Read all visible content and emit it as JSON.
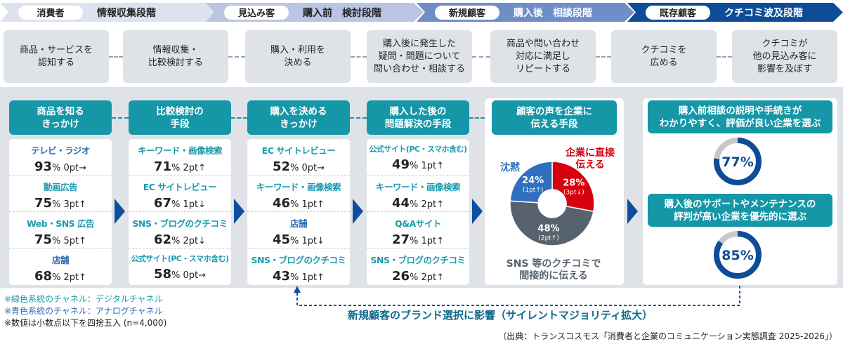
{
  "stages": [
    {
      "pill": "消費者",
      "title": "情報収集段階",
      "bg": "#dde2f0",
      "color": "#222"
    },
    {
      "pill": "見込み客",
      "title": "購入前　検討段階",
      "bg": "#b9c5e2",
      "color": "#222"
    },
    {
      "pill": "新規顧客",
      "title": "購入後　相談段階",
      "bg": "#6f8ec7",
      "color": "#fff"
    },
    {
      "pill": "既存顧客",
      "title": "クチコミ波及段階",
      "bg": "#0f4c97",
      "color": "#fff"
    }
  ],
  "steps": [
    "商品・サービスを\n認知する",
    "情報収集・\n比較検討する",
    "購入・利用を\n決める",
    "購入後に発生した\n疑問・問題について\n問い合わせ・相談する",
    "商品や問い合わせ\n対応に満足し\nリピートする",
    "クチコミを\n広める",
    "クチコミが\n他の見込み客に\n影響を及ぼす"
  ],
  "colors": {
    "digital": "#1a9aae",
    "analog": "#2a6ab8",
    "header": "#1597a8",
    "arrow": "#0c4f9e",
    "red": "#d7000f",
    "gray": "#56636e",
    "blue": "#2f6fbd",
    "ring": "#0f4c97",
    "ring_bg": "#c8c8c8"
  },
  "columns": [
    {
      "header": "商品を知る\nきっかけ",
      "items": [
        {
          "label": "テレビ・ラジオ",
          "channel": "analog",
          "value": "93",
          "unit": "%",
          "change": "0pt→"
        },
        {
          "label": "動画広告",
          "channel": "digital",
          "value": "75",
          "unit": "%",
          "change": "3pt↑"
        },
        {
          "label": "Web・SNS 広告",
          "channel": "digital",
          "value": "75",
          "unit": "%",
          "change": "5pt↑"
        },
        {
          "label": "店舗",
          "channel": "analog",
          "value": "68",
          "unit": "%",
          "change": "2pt↑"
        }
      ]
    },
    {
      "header": "比較検討の\n手段",
      "items": [
        {
          "label": "キーワード・画像検索",
          "channel": "digital",
          "value": "71",
          "unit": "%",
          "change": "2pt↑"
        },
        {
          "label": "EC サイトレビュー",
          "channel": "digital",
          "value": "67",
          "unit": "%",
          "change": "1pt↓"
        },
        {
          "label": "SNS・ブログのクチコミ",
          "channel": "digital",
          "value": "62",
          "unit": "%",
          "change": "2pt↓"
        },
        {
          "label": "公式サイト(PC・スマホ含む)",
          "channel": "digital",
          "value": "58",
          "unit": "%",
          "change": "0pt→"
        }
      ]
    },
    {
      "header": "購入を決める\nきっかけ",
      "items": [
        {
          "label": "EC サイトレビュー",
          "channel": "digital",
          "value": "52",
          "unit": "%",
          "change": "0pt→"
        },
        {
          "label": "キーワード・画像検索",
          "channel": "digital",
          "value": "46",
          "unit": "%",
          "change": "1pt↑"
        },
        {
          "label": "店舗",
          "channel": "analog",
          "value": "45",
          "unit": "%",
          "change": "1pt↓"
        },
        {
          "label": "SNS・ブログのクチコミ",
          "channel": "digital",
          "value": "43",
          "unit": "%",
          "change": "1pt↑"
        }
      ]
    },
    {
      "header": "購入した後の\n問題解決の手段",
      "items": [
        {
          "label": "公式サイト(PC・スマホ含む)",
          "channel": "digital",
          "value": "49",
          "unit": "%",
          "change": "1pt↑"
        },
        {
          "label": "キーワード・画像検索",
          "channel": "digital",
          "value": "44",
          "unit": "%",
          "change": "2pt↑"
        },
        {
          "label": "Q&Aサイト",
          "channel": "digital",
          "value": "27",
          "unit": "%",
          "change": "1pt↑"
        },
        {
          "label": "SNS・ブログのクチコミ",
          "channel": "digital",
          "value": "26",
          "unit": "%",
          "change": "2pt↑"
        }
      ]
    }
  ],
  "voice": {
    "header": "顧客の声を企業に\n伝える手段",
    "slices": [
      {
        "label": "企業に直接\n伝える",
        "value": 28,
        "text": "28%",
        "change": "(3pt↓)",
        "color": "#d7000f"
      },
      {
        "label": "SNS 等のクチコミで\n間接的に伝える",
        "value": 48,
        "text": "48%",
        "change": "(2pt↑)",
        "color": "#56636e"
      },
      {
        "label": "沈黙",
        "value": 24,
        "text": "24%",
        "change": "(1pt↑)",
        "color": "#2f6fbd"
      }
    ]
  },
  "selection": [
    {
      "header": "購入前相談の説明や手続きが\nわかりやすく、評価が良い企業を選ぶ",
      "value": 77,
      "text": "77%"
    },
    {
      "header": "購入後のサポートやメンテナンスの\n評判が高い企業を優先的に選ぶ",
      "value": 85,
      "text": "85%"
    }
  ],
  "notes": [
    "※緑色系統のチャネル：デジタルチャネル",
    "※青色系統のチャネル：アナログチャネル",
    "※数値は小数点以下を四捨五入 (n=4,000)"
  ],
  "influence": "新規顧客のブランド選択に影響（サイレントマジョリティ拡大）",
  "source": "（出典：トランスコスモス「消費者と企業のコミュニケーション実態調査 2025-2026」）"
}
